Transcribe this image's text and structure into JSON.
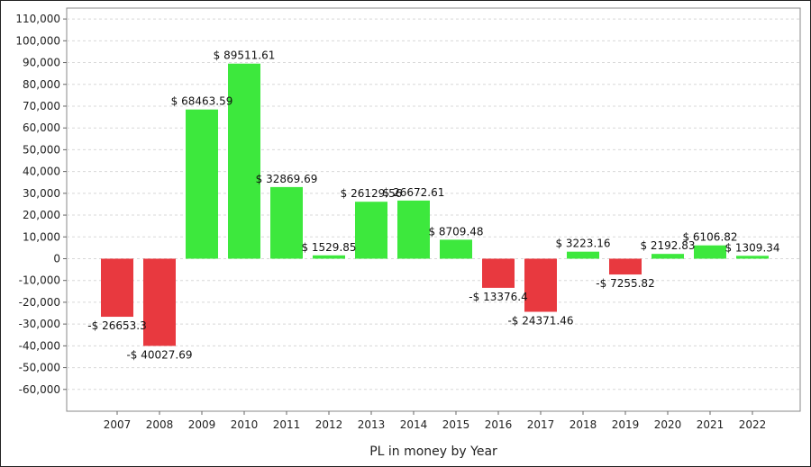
{
  "chart_data": {
    "type": "bar",
    "title": "",
    "xlabel": "PL in money by Year",
    "ylabel": "",
    "ylim": [
      -70000,
      115000
    ],
    "yticks": [
      110000,
      100000,
      90000,
      80000,
      70000,
      60000,
      50000,
      40000,
      30000,
      20000,
      10000,
      0,
      -10000,
      -20000,
      -30000,
      -40000,
      -50000,
      -60000
    ],
    "ytick_labels": [
      "110,000",
      "100,000",
      "90,000",
      "80,000",
      "70,000",
      "60,000",
      "50,000",
      "40,000",
      "30,000",
      "20,000",
      "10,000",
      "0",
      "-10,000",
      "-20,000",
      "-30,000",
      "-40,000",
      "-50,000",
      "-60,000"
    ],
    "grid": true,
    "categories": [
      "2007",
      "2008",
      "2009",
      "2010",
      "2011",
      "2012",
      "2013",
      "2014",
      "2015",
      "2016",
      "2017",
      "2018",
      "2019",
      "2020",
      "2021",
      "2022"
    ],
    "values": [
      -26653.3,
      -40027.69,
      68463.59,
      89511.61,
      32869.69,
      1529.85,
      26129.56,
      26672.61,
      8709.48,
      -13376.4,
      -24371.46,
      3223.16,
      -7255.82,
      2192.83,
      6106.82,
      1309.34
    ],
    "data_labels": [
      "-$ 26653.3",
      "-$ 40027.69",
      "$ 68463.59",
      "$ 89511.61",
      "$ 32869.69",
      "$ 1529.85",
      "$ 26129.56",
      "$ 26672.61",
      "$ 8709.48",
      "-$ 13376.4",
      "-$ 24371.46",
      "$ 3223.16",
      "-$ 7255.82",
      "$ 2192.83",
      "$ 6106.82",
      "$ 1309.34"
    ],
    "colors": {
      "positive": "#3de83d",
      "negative": "#e8393f"
    }
  }
}
